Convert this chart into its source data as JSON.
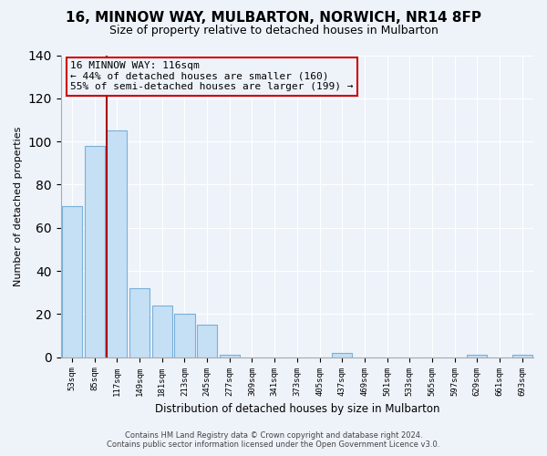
{
  "title": "16, MINNOW WAY, MULBARTON, NORWICH, NR14 8FP",
  "subtitle": "Size of property relative to detached houses in Mulbarton",
  "xlabel": "Distribution of detached houses by size in Mulbarton",
  "ylabel": "Number of detached properties",
  "bar_labels": [
    "53sqm",
    "85sqm",
    "117sqm",
    "149sqm",
    "181sqm",
    "213sqm",
    "245sqm",
    "277sqm",
    "309sqm",
    "341sqm",
    "373sqm",
    "405sqm",
    "437sqm",
    "469sqm",
    "501sqm",
    "533sqm",
    "565sqm",
    "597sqm",
    "629sqm",
    "661sqm",
    "693sqm"
  ],
  "bar_values": [
    70,
    98,
    105,
    32,
    24,
    20,
    15,
    1,
    0,
    0,
    0,
    0,
    2,
    0,
    0,
    0,
    0,
    0,
    1,
    0,
    1
  ],
  "bar_color": "#c5dff5",
  "bar_edge_color": "#7ab0d8",
  "highlight_bar_index": 2,
  "highlight_line_color": "#aa0000",
  "ylim": [
    0,
    140
  ],
  "annotation_line1": "16 MINNOW WAY: 116sqm",
  "annotation_line2": "← 44% of detached houses are smaller (160)",
  "annotation_line3": "55% of semi-detached houses are larger (199) →",
  "annotation_box_edge_color": "#cc0000",
  "footer_line1": "Contains HM Land Registry data © Crown copyright and database right 2024.",
  "footer_line2": "Contains public sector information licensed under the Open Government Licence v3.0.",
  "background_color": "#eef3fa",
  "grid_color": "#ffffff",
  "title_fontsize": 11,
  "subtitle_fontsize": 9
}
